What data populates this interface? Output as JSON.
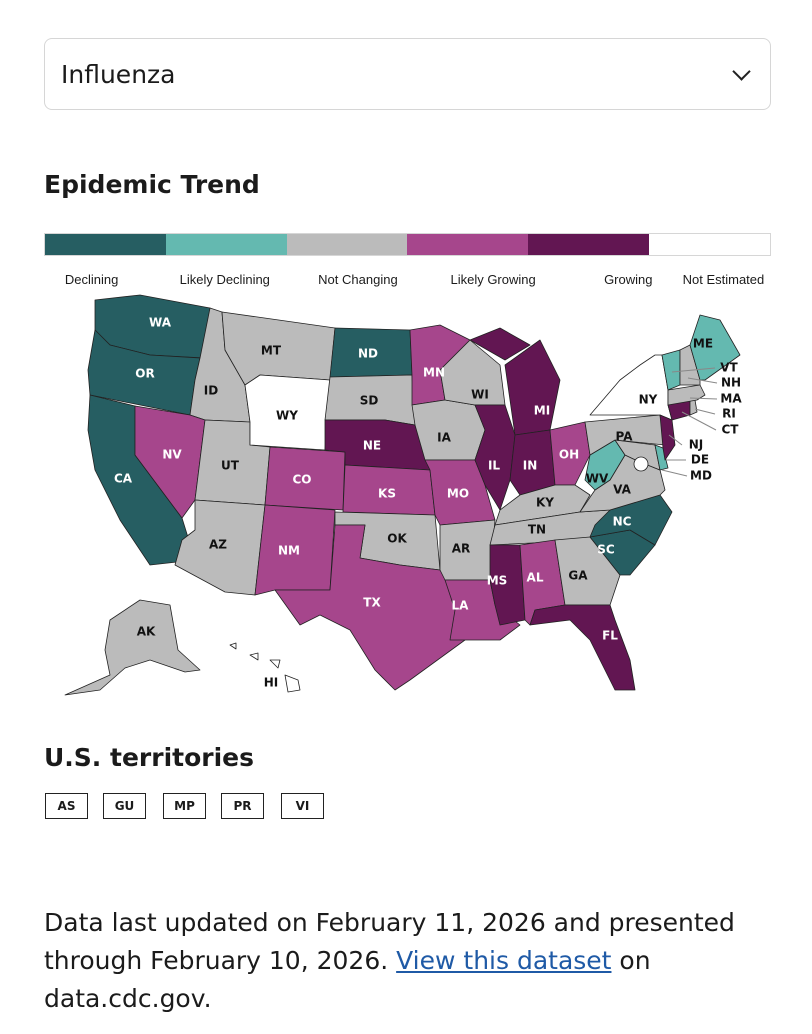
{
  "dropdown": {
    "selected": "Influenza"
  },
  "trend_title": "Epidemic Trend",
  "legend": [
    {
      "key": "declining",
      "label": "Declining",
      "color": "#265e62"
    },
    {
      "key": "likely_declining",
      "label": "Likely Declining",
      "color": "#64b9b0"
    },
    {
      "key": "not_changing",
      "label": "Not Changing",
      "color": "#bbbbbb"
    },
    {
      "key": "likely_growing",
      "label": "Likely Growing",
      "color": "#a6468c"
    },
    {
      "key": "growing",
      "label": "Growing",
      "color": "#621652"
    },
    {
      "key": "not_estimated",
      "label": "Not Estimated",
      "color": "#ffffff"
    }
  ],
  "states": [
    {
      "abbr": "WA",
      "status": "declining"
    },
    {
      "abbr": "OR",
      "status": "declining"
    },
    {
      "abbr": "CA",
      "status": "declining"
    },
    {
      "abbr": "ID",
      "status": "not_changing"
    },
    {
      "abbr": "NV",
      "status": "likely_growing"
    },
    {
      "abbr": "UT",
      "status": "not_changing"
    },
    {
      "abbr": "AZ",
      "status": "not_changing"
    },
    {
      "abbr": "MT",
      "status": "not_changing"
    },
    {
      "abbr": "WY",
      "status": "not_estimated"
    },
    {
      "abbr": "CO",
      "status": "likely_growing"
    },
    {
      "abbr": "NM",
      "status": "likely_growing"
    },
    {
      "abbr": "ND",
      "status": "declining"
    },
    {
      "abbr": "SD",
      "status": "not_changing"
    },
    {
      "abbr": "NE",
      "status": "growing"
    },
    {
      "abbr": "KS",
      "status": "likely_growing"
    },
    {
      "abbr": "OK",
      "status": "not_changing"
    },
    {
      "abbr": "TX",
      "status": "likely_growing"
    },
    {
      "abbr": "MN",
      "status": "likely_growing"
    },
    {
      "abbr": "IA",
      "status": "not_changing"
    },
    {
      "abbr": "MO",
      "status": "likely_growing"
    },
    {
      "abbr": "AR",
      "status": "not_changing"
    },
    {
      "abbr": "LA",
      "status": "likely_growing"
    },
    {
      "abbr": "WI",
      "status": "not_changing"
    },
    {
      "abbr": "IL",
      "status": "growing"
    },
    {
      "abbr": "MI",
      "status": "growing"
    },
    {
      "abbr": "IN",
      "status": "growing"
    },
    {
      "abbr": "OH",
      "status": "likely_growing"
    },
    {
      "abbr": "KY",
      "status": "not_changing"
    },
    {
      "abbr": "TN",
      "status": "not_changing"
    },
    {
      "abbr": "MS",
      "status": "growing"
    },
    {
      "abbr": "AL",
      "status": "likely_growing"
    },
    {
      "abbr": "GA",
      "status": "not_changing"
    },
    {
      "abbr": "FL",
      "status": "growing"
    },
    {
      "abbr": "SC",
      "status": "declining"
    },
    {
      "abbr": "NC",
      "status": "declining"
    },
    {
      "abbr": "VA",
      "status": "not_changing"
    },
    {
      "abbr": "WV",
      "status": "likely_declining"
    },
    {
      "abbr": "MD",
      "status": "not_changing"
    },
    {
      "abbr": "DE",
      "status": "likely_declining"
    },
    {
      "abbr": "PA",
      "status": "not_changing"
    },
    {
      "abbr": "NY",
      "status": "not_estimated"
    },
    {
      "abbr": "NJ",
      "status": "growing"
    },
    {
      "abbr": "CT",
      "status": "growing"
    },
    {
      "abbr": "RI",
      "status": "not_changing"
    },
    {
      "abbr": "MA",
      "status": "not_changing"
    },
    {
      "abbr": "VT",
      "status": "likely_declining"
    },
    {
      "abbr": "NH",
      "status": "not_changing"
    },
    {
      "abbr": "ME",
      "status": "likely_declining"
    },
    {
      "abbr": "AK",
      "status": "not_changing"
    },
    {
      "abbr": "HI",
      "status": "not_estimated"
    },
    {
      "abbr": "DC",
      "status": "not_estimated"
    }
  ],
  "territories_title": "U.S. territories",
  "territories": [
    "AS",
    "GU",
    "MP",
    "PR",
    "VI"
  ],
  "footer": {
    "text_before": "Data last updated on February 11, 2026 and presented through February 10, 2026. ",
    "link": "View this dataset",
    "text_after": " on data.cdc.gov."
  }
}
